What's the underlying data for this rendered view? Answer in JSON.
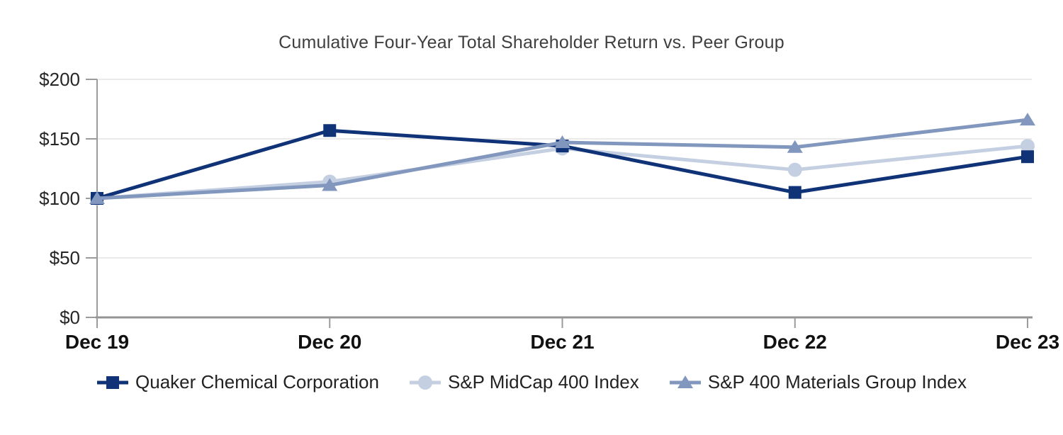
{
  "chart_data": {
    "type": "line",
    "title": "Cumulative Four-Year Total Shareholder Return vs. Peer Group",
    "categories": [
      "Dec 19",
      "Dec 20",
      "Dec 21",
      "Dec 22",
      "Dec 23"
    ],
    "series": [
      {
        "name": "Quaker Chemical Corporation",
        "marker": "square",
        "color": "#0F3376",
        "values": [
          100,
          157,
          144,
          105,
          135
        ]
      },
      {
        "name": "S&P MidCap 400 Index",
        "marker": "circle",
        "color": "#C5CFE2",
        "values": [
          100,
          114,
          142,
          124,
          144
        ]
      },
      {
        "name": "S&P 400 Materials Group Index",
        "marker": "triangle",
        "color": "#8297BD",
        "values": [
          100,
          111,
          147,
          143,
          166
        ]
      }
    ],
    "y_ticks": [
      "$200",
      "$150",
      "$100",
      "$50",
      "$0"
    ],
    "y_tick_values": [
      200,
      150,
      100,
      50,
      0
    ],
    "ylim": [
      0,
      200
    ],
    "xlabel": "",
    "ylabel": "",
    "grid": "horizontal",
    "legend_position": "bottom",
    "colors": {
      "gridline": "#EAEAEA",
      "axis": "#949494",
      "tick": "#9B9B9B",
      "title_text": "#3F3F3F",
      "y_tick_text": "#262626",
      "x_tick_text": "#111111",
      "legend_text": "#222222",
      "background": "#FFFFFF"
    }
  }
}
